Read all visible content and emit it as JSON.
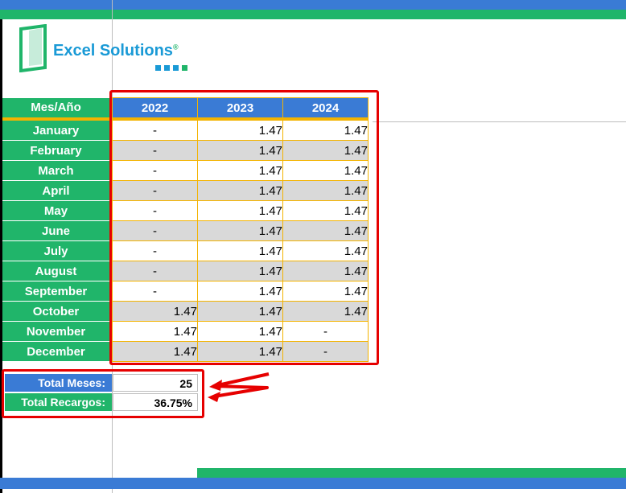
{
  "logo": {
    "text": "Excel Solutions",
    "mark": "®",
    "colors": [
      "#1a9ad6",
      "#1a9ad6",
      "#1a9ad6",
      "#20b56a"
    ]
  },
  "table": {
    "header_label": "Mes/Año",
    "years": [
      "2022",
      "2023",
      "2024"
    ],
    "rows": [
      {
        "month": "January",
        "values": [
          "-",
          "1.47",
          "1.47"
        ]
      },
      {
        "month": "February",
        "values": [
          "-",
          "1.47",
          "1.47"
        ]
      },
      {
        "month": "March",
        "values": [
          "-",
          "1.47",
          "1.47"
        ]
      },
      {
        "month": "April",
        "values": [
          "-",
          "1.47",
          "1.47"
        ]
      },
      {
        "month": "May",
        "values": [
          "-",
          "1.47",
          "1.47"
        ]
      },
      {
        "month": "June",
        "values": [
          "-",
          "1.47",
          "1.47"
        ]
      },
      {
        "month": "July",
        "values": [
          "-",
          "1.47",
          "1.47"
        ]
      },
      {
        "month": "August",
        "values": [
          "-",
          "1.47",
          "1.47"
        ]
      },
      {
        "month": "September",
        "values": [
          "-",
          "1.47",
          "1.47"
        ]
      },
      {
        "month": "October",
        "values": [
          "1.47",
          "1.47",
          "1.47"
        ]
      },
      {
        "month": "November",
        "values": [
          "1.47",
          "1.47",
          "-"
        ]
      },
      {
        "month": "December",
        "values": [
          "1.47",
          "1.47",
          "-"
        ]
      }
    ]
  },
  "totals": {
    "meses_label": "Total Meses:",
    "meses_value": "25",
    "recargos_label": "Total Recargos:",
    "recargos_value": "36.75%"
  },
  "colors": {
    "green": "#20b56a",
    "blue": "#3a7bd5",
    "gold": "#f3b300",
    "red": "#e60000"
  }
}
